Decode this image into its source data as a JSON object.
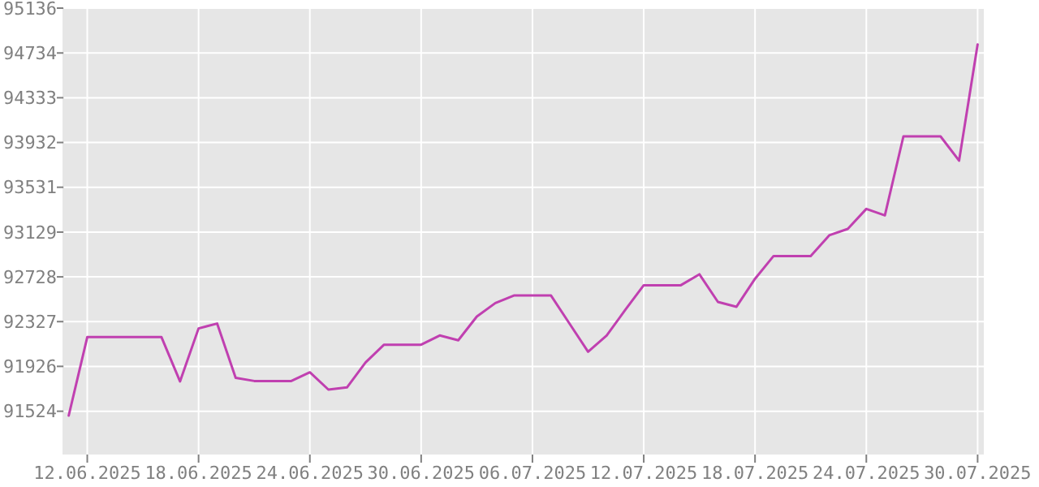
{
  "chart_data": {
    "type": "line",
    "x": [
      "2025-06-11",
      "2025-06-12",
      "2025-06-13",
      "2025-06-14",
      "2025-06-15",
      "2025-06-16",
      "2025-06-17",
      "2025-06-18",
      "2025-06-19",
      "2025-06-20",
      "2025-06-21",
      "2025-06-22",
      "2025-06-23",
      "2025-06-24",
      "2025-06-25",
      "2025-06-26",
      "2025-06-27",
      "2025-06-28",
      "2025-06-29",
      "2025-06-30",
      "2025-07-01",
      "2025-07-02",
      "2025-07-03",
      "2025-07-04",
      "2025-07-05",
      "2025-07-06",
      "2025-07-07",
      "2025-07-08",
      "2025-07-09",
      "2025-07-10",
      "2025-07-11",
      "2025-07-12",
      "2025-07-13",
      "2025-07-14",
      "2025-07-15",
      "2025-07-16",
      "2025-07-17",
      "2025-07-18",
      "2025-07-19",
      "2025-07-20",
      "2025-07-21",
      "2025-07-22",
      "2025-07-23",
      "2025-07-24",
      "2025-07-25",
      "2025-07-26",
      "2025-07-27",
      "2025-07-28",
      "2025-07-29",
      "2025-07-30"
    ],
    "series": [
      {
        "color": "#c040b0",
        "values": [
          91485,
          92188,
          92188,
          92188,
          92188,
          92188,
          91791,
          92266,
          92310,
          91824,
          91795,
          91795,
          91795,
          91873,
          91718,
          91737,
          91960,
          92120,
          92120,
          92120,
          92203,
          92160,
          92372,
          92493,
          92561,
          92561,
          92561,
          92309,
          92057,
          92203,
          92431,
          92653,
          92653,
          92653,
          92751,
          92503,
          92460,
          92711,
          92915,
          92915,
          92915,
          93100,
          93158,
          93337,
          93279,
          93987,
          93987,
          93987,
          93769,
          94811
        ]
      }
    ],
    "xlim": [
      "2025-06-10T17:00",
      "2025-07-30T08:00"
    ],
    "xticks": [
      {
        "value": "2025-06-12",
        "label": "12.06.2025"
      },
      {
        "value": "2025-06-18",
        "label": "18.06.2025"
      },
      {
        "value": "2025-06-24",
        "label": "24.06.2025"
      },
      {
        "value": "2025-06-30",
        "label": "30.06.2025"
      },
      {
        "value": "2025-07-06",
        "label": "06.07.2025"
      },
      {
        "value": "2025-07-12",
        "label": "12.07.2025"
      },
      {
        "value": "2025-07-18",
        "label": "18.07.2025"
      },
      {
        "value": "2025-07-24",
        "label": "24.07.2025"
      },
      {
        "value": "2025-07-30",
        "label": "30.07.2025"
      }
    ],
    "ylim": [
      91136,
      95136
    ],
    "yticks": [
      91524,
      91926,
      92327,
      92728,
      93129,
      93531,
      93932,
      94333,
      94734,
      95136
    ],
    "grid": true,
    "marker": "none",
    "line_style": "solid"
  }
}
